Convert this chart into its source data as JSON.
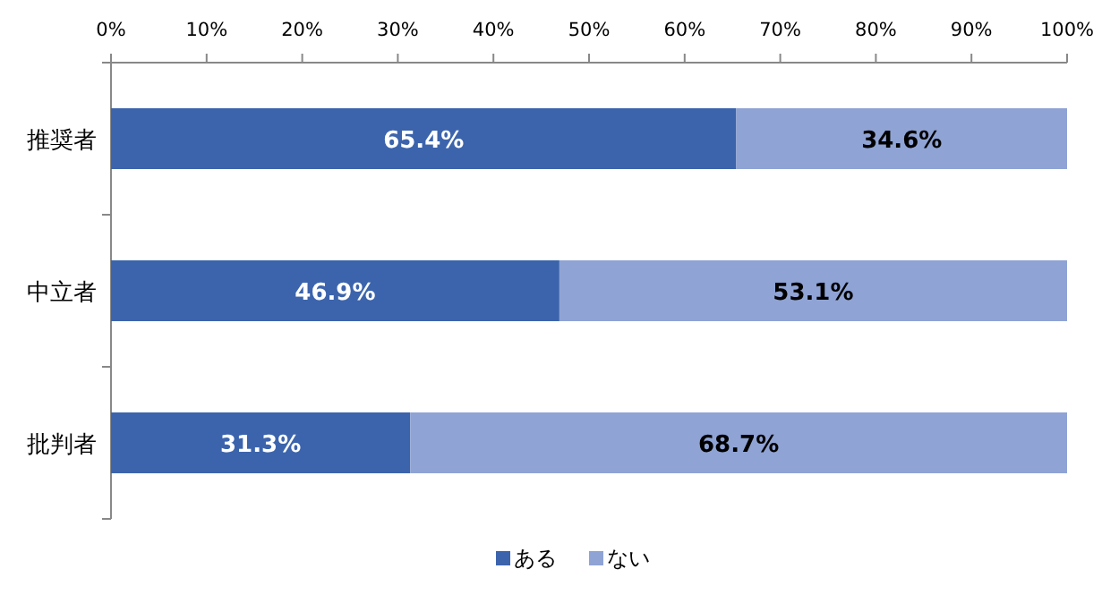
{
  "chart_data": {
    "type": "bar",
    "orientation": "horizontal",
    "stacked": true,
    "categories": [
      "推奨者",
      "中立者",
      "批判者"
    ],
    "series": [
      {
        "name": "ある",
        "color": "#3c64ac",
        "values": [
          65.4,
          46.9,
          31.3
        ],
        "value_labels": [
          "65.4%",
          "46.9%",
          "31.3%"
        ]
      },
      {
        "name": "ない",
        "color": "#8fa3d4",
        "values": [
          34.6,
          53.1,
          68.7
        ],
        "value_labels": [
          "34.6%",
          "53.1%",
          "68.7%"
        ]
      }
    ],
    "xlim": [
      0,
      100
    ],
    "xticks": [
      {
        "value": 0,
        "label": "0%"
      },
      {
        "value": 10,
        "label": "10%"
      },
      {
        "value": 20,
        "label": "20%"
      },
      {
        "value": 30,
        "label": "30%"
      },
      {
        "value": 40,
        "label": "40%"
      },
      {
        "value": 50,
        "label": "50%"
      },
      {
        "value": 60,
        "label": "60%"
      },
      {
        "value": 70,
        "label": "70%"
      },
      {
        "value": 80,
        "label": "80%"
      },
      {
        "value": 90,
        "label": "90%"
      },
      {
        "value": 100,
        "label": "100%"
      }
    ],
    "legend": "bottom"
  }
}
